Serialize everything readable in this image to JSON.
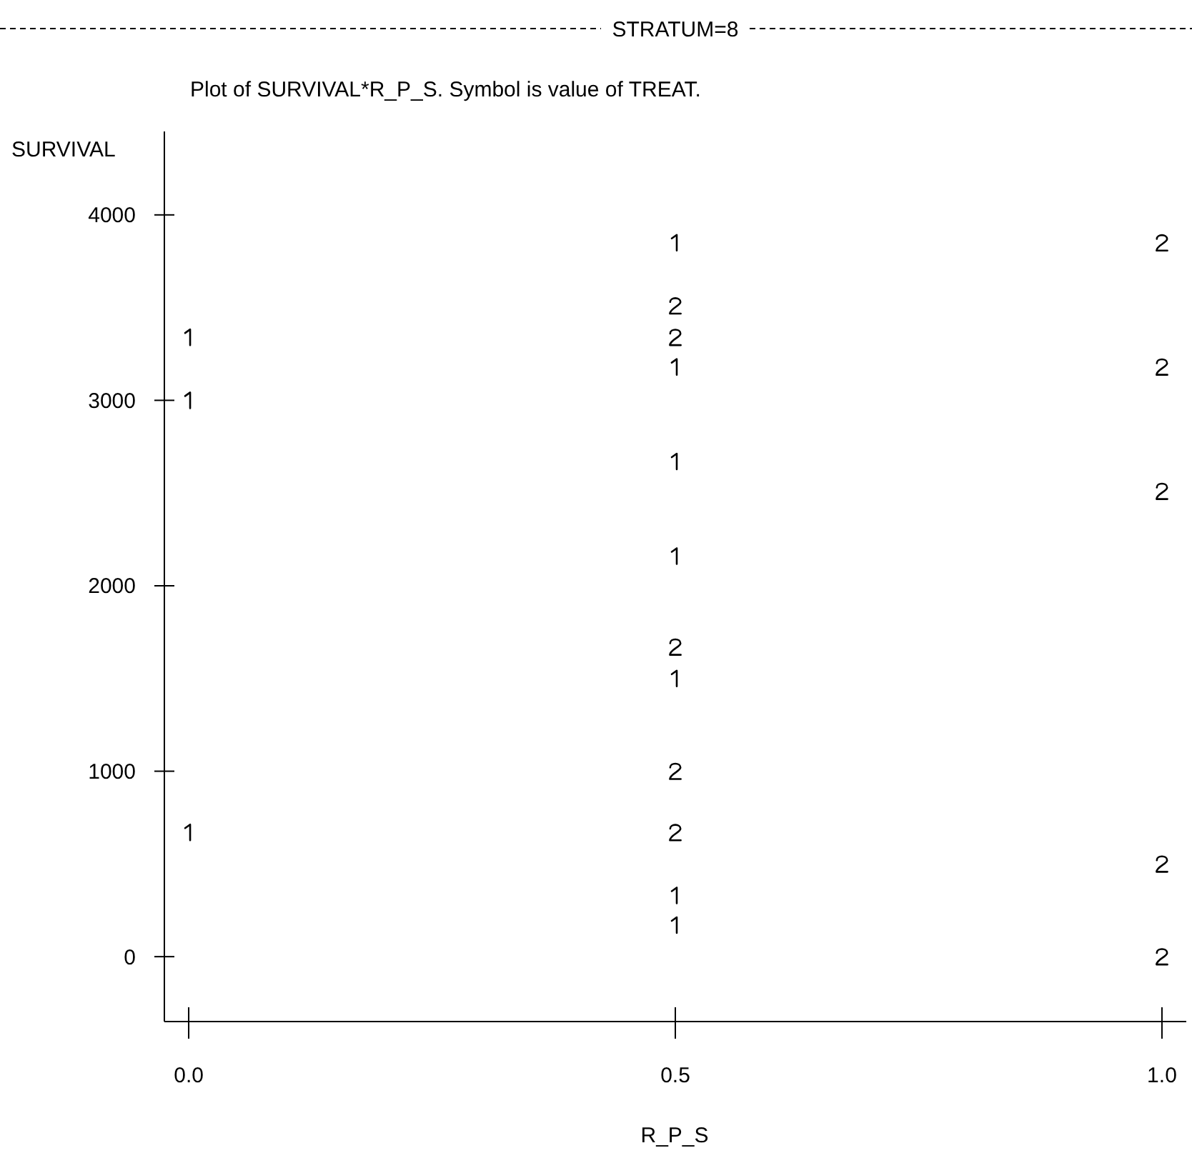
{
  "chart_data": {
    "type": "scatter",
    "title": "STRATUM=8",
    "subtitle": "Plot of SURVIVAL*R_P_S.  Symbol is value of TREAT.",
    "xlabel": "R_P_S",
    "ylabel": "SURVIVAL",
    "xlim": [
      -0.025,
      1.025
    ],
    "xticks": [
      {
        "value": 0,
        "label": "0.0"
      },
      {
        "value": 0.5,
        "label": "0.5"
      },
      {
        "value": 1,
        "label": "1.0"
      }
    ],
    "ylim": [
      -350,
      4450
    ],
    "yticks": [
      0,
      1000,
      2000,
      3000,
      4000
    ],
    "grid": false,
    "legend": false,
    "series": [
      {
        "color": "#000000",
        "x": [
          0,
          0,
          0,
          0.5,
          0.5,
          0.5,
          0.5,
          0.5,
          0.5,
          0.5
        ],
        "values": [
          3340,
          3000,
          670,
          3850,
          3180,
          2670,
          2160,
          1500,
          330,
          170
        ]
      },
      {
        "color": "#000000",
        "x": [
          0.5,
          0.5,
          0.5,
          0.5,
          0.5,
          1,
          1,
          1,
          1,
          1
        ],
        "values": [
          3510,
          3340,
          1670,
          1000,
          670,
          3850,
          3180,
          2510,
          500,
          0
        ]
      }
    ]
  }
}
